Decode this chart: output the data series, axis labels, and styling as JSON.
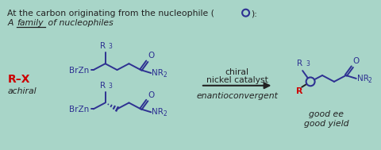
{
  "bg_color": "#a8d5c8",
  "title_line1": "At the carbon originating from the nucleophile (",
  "title_circle_char": "●",
  "title_line1_end": "):",
  "title_line2_a": "A ",
  "title_line2_b": "family",
  "title_line2_c": " of nucleophiles",
  "arrow_text1": "chiral",
  "arrow_text2": "nickel catalyst",
  "arrow_text3": "enantioconvergent",
  "rx_label": "R–X",
  "achiral_label": "achiral",
  "good_ee": "good ee",
  "good_yield": "good yield",
  "blue_color": "#2e3192",
  "red_color": "#cc0000",
  "dark_color": "#222222",
  "teal_color": "#a8d5c8"
}
